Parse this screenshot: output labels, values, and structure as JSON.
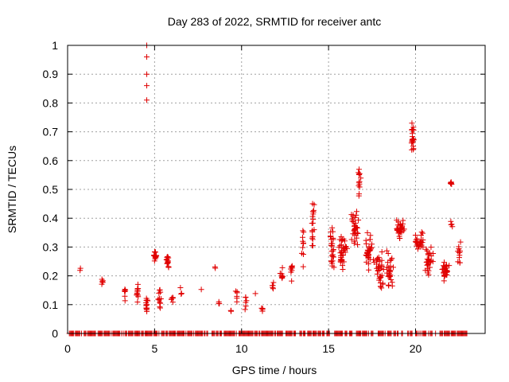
{
  "chart_data": {
    "type": "scatter",
    "title": "Day 283 of 2022, SRMTID for receiver antc",
    "xlabel": "GPS time / hours",
    "ylabel": "SRMTID / TECUs",
    "xlim": [
      0,
      24
    ],
    "ylim": [
      0,
      1
    ],
    "xticks": [
      0,
      5,
      10,
      15,
      20
    ],
    "xtick_labels": [
      "0",
      "5",
      "10",
      "15",
      "20"
    ],
    "yticks": [
      0,
      0.1,
      0.2,
      0.3,
      0.4,
      0.5,
      0.6,
      0.7,
      0.8,
      0.9,
      1
    ],
    "ytick_labels": [
      "0",
      "0.1",
      "0.2",
      "0.3",
      "0.4",
      "0.5",
      "0.6",
      "0.7",
      "0.8",
      "0.9",
      "1"
    ],
    "grid": true,
    "marker": "+",
    "color": "#e00000",
    "clusters": [
      {
        "x": 0.75,
        "y": 0.22,
        "xs": 0.05,
        "ys": 0.005,
        "n": 2
      },
      {
        "x": 2.0,
        "y": 0.18,
        "xs": 0.05,
        "ys": 0.012,
        "n": 5
      },
      {
        "x": 3.3,
        "y": 0.14,
        "xs": 0.06,
        "ys": 0.025,
        "n": 6
      },
      {
        "x": 4.0,
        "y": 0.14,
        "xs": 0.07,
        "ys": 0.03,
        "n": 12
      },
      {
        "x": 4.55,
        "y": 0.1,
        "xs": 0.06,
        "ys": 0.03,
        "n": 14
      },
      {
        "x": 5.05,
        "y": 0.27,
        "xs": 0.07,
        "ys": 0.02,
        "n": 14
      },
      {
        "x": 5.3,
        "y": 0.12,
        "xs": 0.08,
        "ys": 0.03,
        "n": 12
      },
      {
        "x": 5.75,
        "y": 0.25,
        "xs": 0.08,
        "ys": 0.025,
        "n": 16
      },
      {
        "x": 6.0,
        "y": 0.12,
        "xs": 0.1,
        "ys": 0.015,
        "n": 5
      },
      {
        "x": 6.5,
        "y": 0.15,
        "xs": 0.05,
        "ys": 0.015,
        "n": 3
      },
      {
        "x": 7.7,
        "y": 0.16,
        "xs": 0.03,
        "ys": 0.005,
        "n": 1
      },
      {
        "x": 8.5,
        "y": 0.225,
        "xs": 0.04,
        "ys": 0.008,
        "n": 2
      },
      {
        "x": 8.7,
        "y": 0.11,
        "xs": 0.05,
        "ys": 0.012,
        "n": 3
      },
      {
        "x": 9.4,
        "y": 0.075,
        "xs": 0.05,
        "ys": 0.008,
        "n": 3
      },
      {
        "x": 9.75,
        "y": 0.13,
        "xs": 0.06,
        "ys": 0.025,
        "n": 6
      },
      {
        "x": 10.25,
        "y": 0.1,
        "xs": 0.06,
        "ys": 0.025,
        "n": 6
      },
      {
        "x": 10.8,
        "y": 0.14,
        "xs": 0.03,
        "ys": 0.005,
        "n": 1
      },
      {
        "x": 11.2,
        "y": 0.085,
        "xs": 0.06,
        "ys": 0.015,
        "n": 5
      },
      {
        "x": 11.8,
        "y": 0.15,
        "xs": 0.06,
        "ys": 0.025,
        "n": 5
      },
      {
        "x": 12.3,
        "y": 0.2,
        "xs": 0.07,
        "ys": 0.03,
        "n": 8
      },
      {
        "x": 12.9,
        "y": 0.22,
        "xs": 0.07,
        "ys": 0.03,
        "n": 8
      },
      {
        "x": 13.55,
        "y": 0.3,
        "xs": 0.07,
        "ys": 0.06,
        "n": 10
      },
      {
        "x": 14.1,
        "y": 0.38,
        "xs": 0.08,
        "ys": 0.08,
        "n": 18
      },
      {
        "x": 15.2,
        "y": 0.3,
        "xs": 0.12,
        "ys": 0.07,
        "n": 26
      },
      {
        "x": 15.8,
        "y": 0.28,
        "xs": 0.25,
        "ys": 0.05,
        "n": 36
      },
      {
        "x": 16.5,
        "y": 0.36,
        "xs": 0.18,
        "ys": 0.06,
        "n": 32
      },
      {
        "x": 16.75,
        "y": 0.52,
        "xs": 0.08,
        "ys": 0.06,
        "n": 14
      },
      {
        "x": 17.3,
        "y": 0.28,
        "xs": 0.25,
        "ys": 0.06,
        "n": 36
      },
      {
        "x": 17.95,
        "y": 0.22,
        "xs": 0.25,
        "ys": 0.07,
        "n": 34
      },
      {
        "x": 18.5,
        "y": 0.22,
        "xs": 0.2,
        "ys": 0.06,
        "n": 28
      },
      {
        "x": 19.1,
        "y": 0.36,
        "xs": 0.2,
        "ys": 0.03,
        "n": 34
      },
      {
        "x": 19.85,
        "y": 0.68,
        "xs": 0.08,
        "ys": 0.05,
        "n": 24
      },
      {
        "x": 20.2,
        "y": 0.32,
        "xs": 0.2,
        "ys": 0.03,
        "n": 30
      },
      {
        "x": 20.8,
        "y": 0.25,
        "xs": 0.2,
        "ys": 0.05,
        "n": 30
      },
      {
        "x": 21.7,
        "y": 0.22,
        "xs": 0.2,
        "ys": 0.03,
        "n": 28
      },
      {
        "x": 22.05,
        "y": 0.38,
        "xs": 0.08,
        "ys": 0.01,
        "n": 4
      },
      {
        "x": 22.05,
        "y": 0.52,
        "xs": 0.05,
        "ys": 0.012,
        "n": 7
      },
      {
        "x": 22.5,
        "y": 0.28,
        "xs": 0.08,
        "ys": 0.04,
        "n": 14
      }
    ],
    "outlier_points": [
      {
        "x": 4.55,
        "y": 1.0
      },
      {
        "x": 4.55,
        "y": 0.96
      },
      {
        "x": 4.55,
        "y": 0.9
      },
      {
        "x": 4.55,
        "y": 0.86
      },
      {
        "x": 4.55,
        "y": 0.81
      }
    ],
    "zero_baseline": {
      "y": 0,
      "x_start": 0.1,
      "x_end": 23.0,
      "step": 0.05,
      "gaps": [
        [
          15.1,
          15.35
        ],
        [
          16.4,
          16.6
        ],
        [
          17.6,
          17.8
        ],
        [
          19.3,
          19.5
        ],
        [
          21.2,
          21.4
        ]
      ]
    }
  }
}
